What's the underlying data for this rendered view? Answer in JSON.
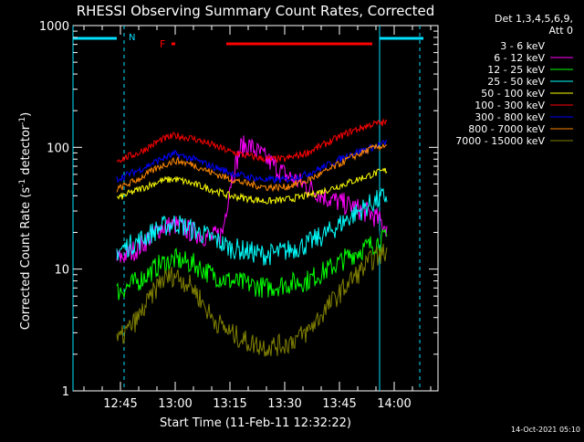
{
  "chart_data": {
    "type": "line",
    "title": "RHESSI Observing Summary Count Rates, Corrected",
    "xlabel": "Start Time (11-Feb-11 12:32:22)",
    "ylabel_main": "Corrected Count Rate (s",
    "ylabel_sup1": "-1",
    "ylabel_mid": " detector",
    "ylabel_sup2": "-1",
    "ylabel_end": ")",
    "ylabel": "Corrected Count Rate (s^-1 detector^-1)",
    "yscale": "log",
    "ylim": [
      1,
      1000
    ],
    "xlim": [
      "12:32",
      "14:12"
    ],
    "x_ticks": [
      "12:45",
      "13:00",
      "13:15",
      "13:30",
      "13:45",
      "14:00"
    ],
    "y_ticks": [
      "1",
      "10",
      "100",
      "1000"
    ],
    "footer_timestamp": "14-Oct-2021 05:10",
    "legend_header": [
      "Det 1,3,4,5,6,9,",
      "Att 0"
    ],
    "legend_placement": "right",
    "markers": {
      "night_label": "N",
      "flare_label": "F",
      "night_color": "#00e0ff",
      "flare_color": "#ff0000",
      "night_top_segments": [
        [
          "12:32",
          "12:44"
        ],
        [
          "13:56",
          "14:08"
        ]
      ],
      "night_edge_times": [
        "12:32",
        "13:56"
      ],
      "night_dashed_times": [
        "12:46",
        "14:07"
      ],
      "flare_segments": [
        [
          "12:59",
          "13:00"
        ],
        [
          "13:14",
          "13:54"
        ]
      ]
    },
    "series": [
      {
        "name": "3 - 6 keV",
        "color": "#ffffff",
        "line": "#000000",
        "values": [
          [
            "12:44",
            9
          ],
          [
            "12:46",
            7
          ],
          [
            "12:48",
            8
          ],
          [
            "12:55",
            7
          ],
          [
            "13:00",
            10
          ],
          [
            "13:05",
            7
          ],
          [
            "13:10",
            5
          ],
          [
            "13:13",
            10
          ],
          [
            "13:15",
            55
          ],
          [
            "13:18",
            90
          ],
          [
            "13:20",
            95
          ],
          [
            "13:25",
            75
          ],
          [
            "13:30",
            58
          ],
          [
            "13:36",
            45
          ],
          [
            "13:42",
            35
          ],
          [
            "13:48",
            30
          ],
          [
            "13:54",
            22
          ],
          [
            "13:58",
            15
          ]
        ]
      },
      {
        "name": "6 - 12 keV",
        "color": "#ff00ff",
        "values": [
          [
            "12:44",
            12
          ],
          [
            "12:50",
            15
          ],
          [
            "12:56",
            22
          ],
          [
            "13:00",
            23
          ],
          [
            "13:05",
            20
          ],
          [
            "13:10",
            18
          ],
          [
            "13:13",
            20
          ],
          [
            "13:15",
            50
          ],
          [
            "13:18",
            100
          ],
          [
            "13:20",
            105
          ],
          [
            "13:25",
            80
          ],
          [
            "13:30",
            60
          ],
          [
            "13:36",
            48
          ],
          [
            "13:42",
            38
          ],
          [
            "13:48",
            33
          ],
          [
            "13:54",
            28
          ],
          [
            "13:58",
            22
          ]
        ]
      },
      {
        "name": "12 - 25 keV",
        "color": "#00ff00",
        "values": [
          [
            "12:44",
            6.5
          ],
          [
            "12:50",
            8
          ],
          [
            "12:56",
            11
          ],
          [
            "13:00",
            12
          ],
          [
            "13:05",
            11
          ],
          [
            "13:10",
            9
          ],
          [
            "13:15",
            8
          ],
          [
            "13:20",
            7.5
          ],
          [
            "13:25",
            7
          ],
          [
            "13:30",
            7.5
          ],
          [
            "13:36",
            8
          ],
          [
            "13:42",
            10
          ],
          [
            "13:48",
            13
          ],
          [
            "13:54",
            16
          ],
          [
            "13:58",
            18
          ]
        ]
      },
      {
        "name": "25 - 50 keV",
        "color": "#00ffff",
        "values": [
          [
            "12:44",
            14
          ],
          [
            "12:50",
            17
          ],
          [
            "12:56",
            22
          ],
          [
            "13:00",
            24
          ],
          [
            "13:05",
            21
          ],
          [
            "13:10",
            18
          ],
          [
            "13:15",
            15
          ],
          [
            "13:20",
            14
          ],
          [
            "13:25",
            13
          ],
          [
            "13:30",
            14
          ],
          [
            "13:36",
            16
          ],
          [
            "13:42",
            20
          ],
          [
            "13:48",
            27
          ],
          [
            "13:54",
            35
          ],
          [
            "13:58",
            40
          ]
        ]
      },
      {
        "name": "50 - 100 keV",
        "color": "#ffff00",
        "values": [
          [
            "12:44",
            38
          ],
          [
            "12:50",
            45
          ],
          [
            "12:56",
            53
          ],
          [
            "13:00",
            55
          ],
          [
            "13:05",
            50
          ],
          [
            "13:10",
            45
          ],
          [
            "13:15",
            40
          ],
          [
            "13:20",
            38
          ],
          [
            "13:25",
            36
          ],
          [
            "13:30",
            37
          ],
          [
            "13:36",
            40
          ],
          [
            "13:42",
            45
          ],
          [
            "13:48",
            52
          ],
          [
            "13:54",
            60
          ],
          [
            "13:58",
            65
          ]
        ]
      },
      {
        "name": "100 - 300 keV",
        "color": "#ff0000",
        "values": [
          [
            "12:44",
            78
          ],
          [
            "12:50",
            90
          ],
          [
            "12:56",
            115
          ],
          [
            "13:00",
            125
          ],
          [
            "13:05",
            118
          ],
          [
            "13:10",
            105
          ],
          [
            "13:15",
            92
          ],
          [
            "13:20",
            85
          ],
          [
            "13:25",
            80
          ],
          [
            "13:30",
            80
          ],
          [
            "13:36",
            90
          ],
          [
            "13:42",
            110
          ],
          [
            "13:48",
            135
          ],
          [
            "13:54",
            155
          ],
          [
            "13:58",
            160
          ]
        ]
      },
      {
        "name": "300 - 800 keV",
        "color": "#0000ff",
        "values": [
          [
            "12:44",
            55
          ],
          [
            "12:50",
            65
          ],
          [
            "12:56",
            80
          ],
          [
            "13:00",
            88
          ],
          [
            "13:05",
            80
          ],
          [
            "13:10",
            70
          ],
          [
            "13:15",
            62
          ],
          [
            "13:20",
            57
          ],
          [
            "13:25",
            54
          ],
          [
            "13:30",
            54
          ],
          [
            "13:36",
            60
          ],
          [
            "13:42",
            72
          ],
          [
            "13:48",
            88
          ],
          [
            "13:54",
            100
          ],
          [
            "13:58",
            110
          ]
        ]
      },
      {
        "name": "800 - 7000 keV",
        "color": "#ff8800",
        "values": [
          [
            "12:44",
            45
          ],
          [
            "12:50",
            55
          ],
          [
            "12:56",
            70
          ],
          [
            "13:00",
            78
          ],
          [
            "13:05",
            72
          ],
          [
            "13:10",
            62
          ],
          [
            "13:15",
            55
          ],
          [
            "13:20",
            50
          ],
          [
            "13:25",
            47
          ],
          [
            "13:30",
            47
          ],
          [
            "13:36",
            53
          ],
          [
            "13:42",
            65
          ],
          [
            "13:48",
            82
          ],
          [
            "13:54",
            98
          ],
          [
            "13:58",
            105
          ]
        ]
      },
      {
        "name": "7000 - 15000 keV",
        "color": "#808000",
        "values": [
          [
            "12:44",
            2.5
          ],
          [
            "12:50",
            4
          ],
          [
            "12:56",
            8
          ],
          [
            "13:00",
            9
          ],
          [
            "13:05",
            7
          ],
          [
            "13:10",
            4
          ],
          [
            "13:15",
            3
          ],
          [
            "13:20",
            2.5
          ],
          [
            "13:25",
            2.3
          ],
          [
            "13:30",
            2.4
          ],
          [
            "13:36",
            3
          ],
          [
            "13:42",
            5
          ],
          [
            "13:48",
            8
          ],
          [
            "13:54",
            12
          ],
          [
            "13:58",
            14
          ]
        ]
      }
    ]
  }
}
